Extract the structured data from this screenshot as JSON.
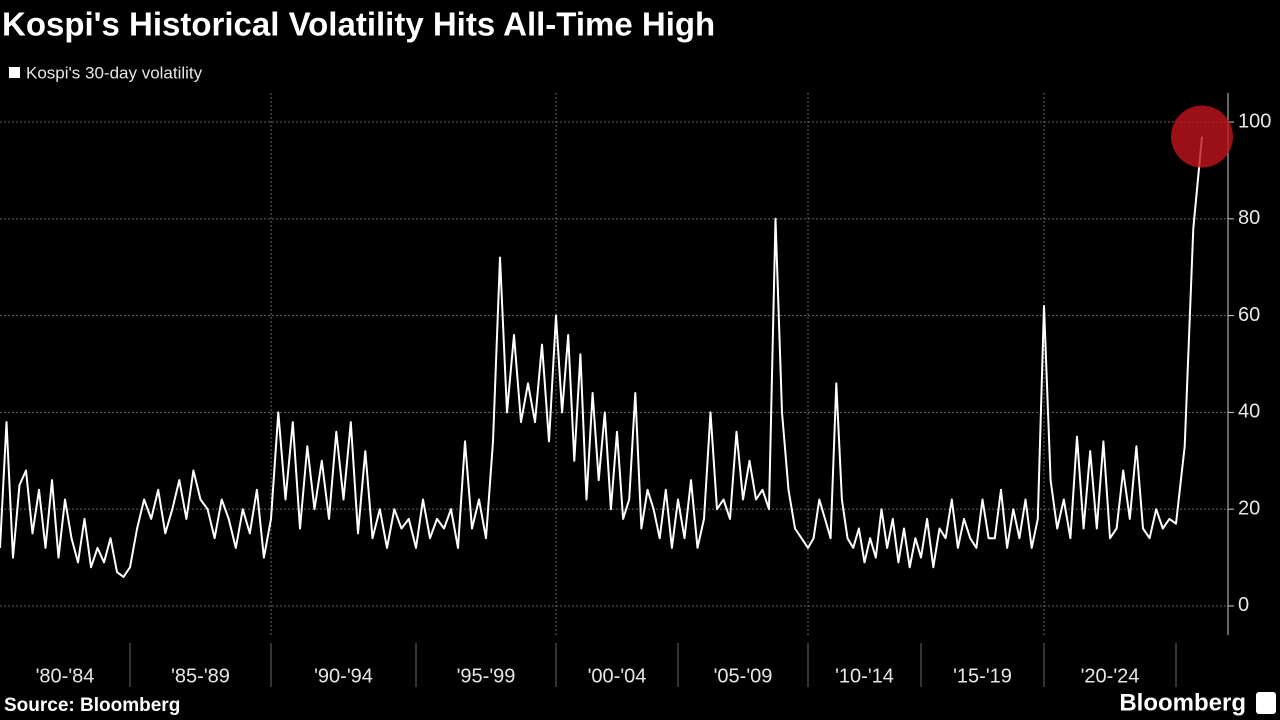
{
  "chart_data": {
    "type": "line",
    "title": "Kospi's Historical Volatility Hits All-Time High",
    "source": "Source: Bloomberg",
    "brand": "Bloomberg",
    "series": [
      {
        "name": "Kospi's 30-day volatility",
        "color": "#ffffff",
        "x": [
          1980,
          1980.25,
          1980.5,
          1980.75,
          1981,
          1981.25,
          1981.5,
          1981.75,
          1982,
          1982.25,
          1982.5,
          1982.75,
          1983,
          1983.25,
          1983.5,
          1983.75,
          1984,
          1984.25,
          1984.5,
          1984.75,
          1985,
          1985.25,
          1985.5,
          1985.75,
          1986,
          1986.25,
          1986.5,
          1986.75,
          1987,
          1987.25,
          1987.5,
          1987.75,
          1988,
          1988.25,
          1988.5,
          1988.75,
          1989,
          1989.25,
          1989.5,
          1989.75,
          1990,
          1990.25,
          1990.5,
          1990.75,
          1991,
          1991.25,
          1991.5,
          1991.75,
          1992,
          1992.25,
          1992.5,
          1992.75,
          1993,
          1993.25,
          1993.5,
          1993.75,
          1994,
          1994.25,
          1994.5,
          1994.75,
          1995,
          1995.25,
          1995.5,
          1995.75,
          1996,
          1996.25,
          1996.5,
          1996.75,
          1997,
          1997.25,
          1997.5,
          1997.75,
          1998,
          1998.25,
          1998.5,
          1998.75,
          1999,
          1999.25,
          1999.5,
          1999.75,
          2000,
          2000.25,
          2000.5,
          2000.75,
          2001,
          2001.25,
          2001.5,
          2001.75,
          2002,
          2002.25,
          2002.5,
          2002.75,
          2003,
          2003.25,
          2003.5,
          2003.75,
          2004,
          2004.25,
          2004.5,
          2004.75,
          2005,
          2005.25,
          2005.5,
          2005.75,
          2006,
          2006.25,
          2006.5,
          2006.75,
          2007,
          2007.25,
          2007.5,
          2007.75,
          2008,
          2008.25,
          2008.5,
          2008.75,
          2009,
          2009.25,
          2009.5,
          2009.75,
          2010,
          2010.25,
          2010.5,
          2010.75,
          2011,
          2011.25,
          2011.5,
          2011.75,
          2012,
          2012.25,
          2012.5,
          2012.75,
          2013,
          2013.25,
          2013.5,
          2013.75,
          2014,
          2014.25,
          2014.5,
          2014.75,
          2015,
          2015.25,
          2015.5,
          2015.75,
          2016,
          2016.25,
          2016.5,
          2016.75,
          2017,
          2017.25,
          2017.5,
          2017.75,
          2018,
          2018.25,
          2018.5,
          2018.75,
          2019,
          2019.25,
          2019.5,
          2019.75,
          2020,
          2020.25,
          2020.5,
          2020.75,
          2021,
          2021.25,
          2021.5,
          2021.75,
          2022,
          2022.25,
          2022.5,
          2022.75,
          2023,
          2023.25,
          2023.5,
          2023.75,
          2024,
          2024.25,
          2024.5,
          2024.75,
          2025,
          2025.25,
          2025.5,
          2025.75
        ],
        "values": [
          12,
          38,
          10,
          25,
          28,
          15,
          24,
          12,
          26,
          10,
          22,
          14,
          9,
          18,
          8,
          12,
          9,
          14,
          7,
          6,
          8,
          16,
          22,
          18,
          24,
          15,
          20,
          26,
          18,
          28,
          22,
          20,
          14,
          22,
          18,
          12,
          20,
          15,
          24,
          10,
          18,
          40,
          22,
          38,
          16,
          33,
          20,
          30,
          18,
          36,
          22,
          38,
          15,
          32,
          14,
          20,
          12,
          20,
          16,
          18,
          12,
          22,
          14,
          18,
          16,
          20,
          12,
          34,
          16,
          22,
          14,
          34,
          72,
          40,
          56,
          38,
          46,
          38,
          54,
          34,
          60,
          40,
          56,
          30,
          52,
          22,
          44,
          26,
          40,
          20,
          36,
          18,
          22,
          44,
          16,
          24,
          20,
          14,
          24,
          12,
          22,
          14,
          26,
          12,
          18,
          40,
          20,
          22,
          18,
          36,
          22,
          30,
          22,
          24,
          20,
          80,
          40,
          24,
          16,
          14,
          12,
          14,
          22,
          18,
          14,
          46,
          22,
          14,
          12,
          16,
          9,
          14,
          10,
          20,
          12,
          18,
          9,
          16,
          8,
          14,
          10,
          18,
          8,
          16,
          14,
          22,
          12,
          18,
          14,
          12,
          22,
          14,
          14,
          24,
          12,
          20,
          14,
          22,
          12,
          18,
          62,
          26,
          16,
          22,
          14,
          35,
          16,
          32,
          16,
          34,
          14,
          16,
          28,
          18,
          33,
          16,
          14,
          20,
          16,
          18,
          17,
          33,
          78,
          97
        ]
      }
    ],
    "xlim": [
      1980,
      2026.5
    ],
    "xticks": [
      1985,
      1990,
      1995,
      2000,
      2005,
      2010,
      2015,
      2020,
      2025
    ],
    "x_labels": [
      "'80-'84",
      "'85-'89",
      "'90-'94",
      "'95-'99",
      "'00-'04",
      "'05-'09",
      "'10-'14",
      "'15-'19",
      "'20-'24"
    ],
    "ylim": [
      -6,
      106
    ],
    "yticks": [
      0,
      20,
      40,
      60,
      80,
      100
    ],
    "grid": true,
    "highlight_color": "#c0141c"
  }
}
